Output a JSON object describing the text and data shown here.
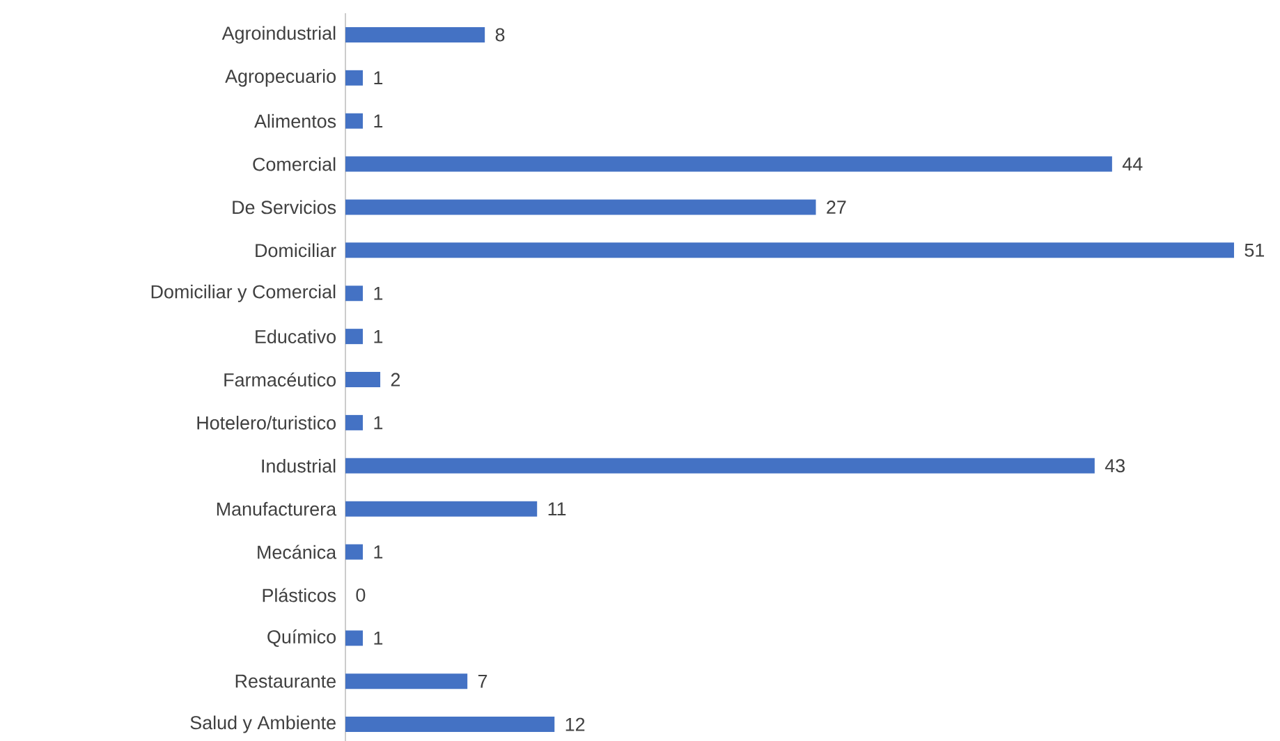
{
  "chart_data": {
    "type": "bar",
    "orientation": "horizontal",
    "data_labels": true,
    "color": "#4472c4",
    "categories": [
      "Agroindustrial",
      "Agropecuario",
      "Alimentos",
      "Comercial",
      "De Servicios",
      "Domiciliar",
      "Domiciliar y Comercial",
      "Educativo",
      "Farmacéutico",
      "Hotelero/turistico",
      "Industrial",
      "Manufacturera",
      "Mecánica",
      "Plásticos",
      "Químico",
      "Restaurante",
      "Salud y Ambiente"
    ],
    "values": [
      8,
      1,
      1,
      44,
      27,
      51,
      1,
      1,
      2,
      1,
      43,
      11,
      1,
      0,
      1,
      7,
      12
    ]
  }
}
